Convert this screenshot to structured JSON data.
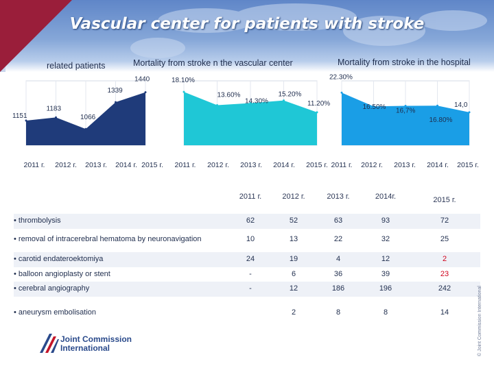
{
  "title": "Vascular center for patients with stroke",
  "colors": {
    "accent_dark": "#1f3b7a",
    "accent_teal": "#1fc7d6",
    "accent_blue": "#1a9ee6",
    "alert_red": "#d0021b"
  },
  "chart_data": [
    {
      "type": "area",
      "title": "related patients",
      "categories": [
        "2011 г.",
        "2012 г.",
        "2013 г.",
        "2014 г.",
        "2015 г."
      ],
      "values": [
        1151,
        1183,
        1066,
        1339,
        1440
      ],
      "data_labels": [
        "1151",
        "1183",
        "1066",
        "1339",
        "1440"
      ],
      "color": "#1f3b7a",
      "grid": true
    },
    {
      "type": "area",
      "title": "Mortality from stroke n the vascular center",
      "categories": [
        "2011 г.",
        "2012 г.",
        "2013 г.",
        "2014 г.",
        "2015 г."
      ],
      "values": [
        18.1,
        13.6,
        14.3,
        15.2,
        11.2
      ],
      "data_labels": [
        "18.10%",
        "13.60%",
        "14.30%",
        "15.20%",
        "11.20%"
      ],
      "color": "#1fc7d6",
      "grid": true
    },
    {
      "type": "area",
      "title": "Mortality from stroke in the hospital",
      "categories": [
        "2011 г.",
        "2012 г.",
        "2013 г.",
        "2014 г.",
        "2015 г."
      ],
      "values": [
        22.3,
        16.5,
        16.7,
        16.8,
        14.0
      ],
      "data_labels": [
        "22.30%",
        "16.50%",
        "16,7%",
        "16.80%",
        "14,0"
      ],
      "color": "#1a9ee6",
      "grid": true
    },
    {
      "type": "table",
      "columns": [
        "2011 г.",
        "2012 г.",
        "2013 г.",
        "2014г.",
        "2015 г."
      ],
      "rows": [
        {
          "name": "• thrombolysis",
          "values": [
            "62",
            "52",
            "63",
            "93",
            "72"
          ]
        },
        {
          "name": "• removal of intracerebral hematoma by neuronavigation",
          "values": [
            "10",
            "13",
            "22",
            "32",
            "25"
          ]
        },
        {
          "name": "• carotid endateroektomiya",
          "values": [
            "24",
            "19",
            "4",
            "12",
            "2"
          ]
        },
        {
          "name": "• balloon angioplasty or stent",
          "values": [
            "-",
            "6",
            "36",
            "39",
            "23"
          ]
        },
        {
          "name": "• cerebral angiography",
          "values": [
            "-",
            "12",
            "186",
            "196",
            "242"
          ]
        },
        {
          "name": "• aneurysm embolisation",
          "values": [
            "",
            "2",
            "8",
            "8",
            "14"
          ]
        }
      ]
    }
  ],
  "logo": {
    "line1": "Joint Commission",
    "line2": "International"
  },
  "copyright": "© Joint Commission International"
}
